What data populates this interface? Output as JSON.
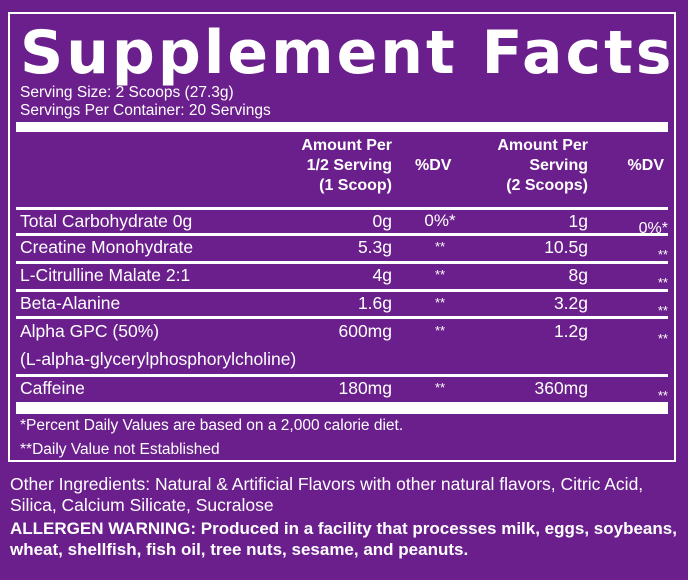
{
  "title": "Supplement Facts",
  "serving_size": "Serving Size: 2 Scoops (27.3g)",
  "servings_per_container": "Servings Per Container: 20 Servings",
  "headers": {
    "amount_half": [
      "Amount Per",
      "1/2 Serving",
      "(1 Scoop)"
    ],
    "dv1": "%DV",
    "amount_full": [
      "Amount Per",
      "Serving",
      "(2 Scoops)"
    ],
    "dv2": "%DV"
  },
  "rows": [
    {
      "name": "Total Carbohydrate 0g",
      "half": "0g",
      "dv1": "0%*",
      "full": "1g",
      "dv2": "0%*"
    },
    {
      "name": "Creatine Monohydrate",
      "half": "5.3g",
      "dv1": "**",
      "full": "10.5g",
      "dv2": "**"
    },
    {
      "name": "L-Citrulline Malate 2:1",
      "half": "4g",
      "dv1": "**",
      "full": "8g",
      "dv2": "**"
    },
    {
      "name": "Beta-Alanine",
      "half": "1.6g",
      "dv1": "**",
      "full": "3.2g",
      "dv2": "**"
    },
    {
      "name": "Alpha GPC (50%)",
      "sub": "(L-alpha-glycerylphosphorylcholine)",
      "half": "600mg",
      "dv1": "**",
      "full": "1.2g",
      "dv2": "**"
    },
    {
      "name": "Caffeine",
      "half": "180mg",
      "dv1": "**",
      "full": "360mg",
      "dv2": "**"
    }
  ],
  "footnotes": [
    "*Percent Daily Values are based on a 2,000 calorie diet.",
    "**Daily Value not Established"
  ],
  "other_ingredients": "Other Ingredients: Natural & Artificial Flavors with other natural flavors, Citric Acid, Silica, Calcium Silicate, Sucralose",
  "allergen_warning": "ALLERGEN WARNING: Produced in a facility that processes milk, eggs, soybeans, wheat, shellfish, fish oil, tree nuts, sesame, and peanuts.",
  "colors": {
    "background": "#6b1f8c",
    "text": "#ffffff"
  }
}
